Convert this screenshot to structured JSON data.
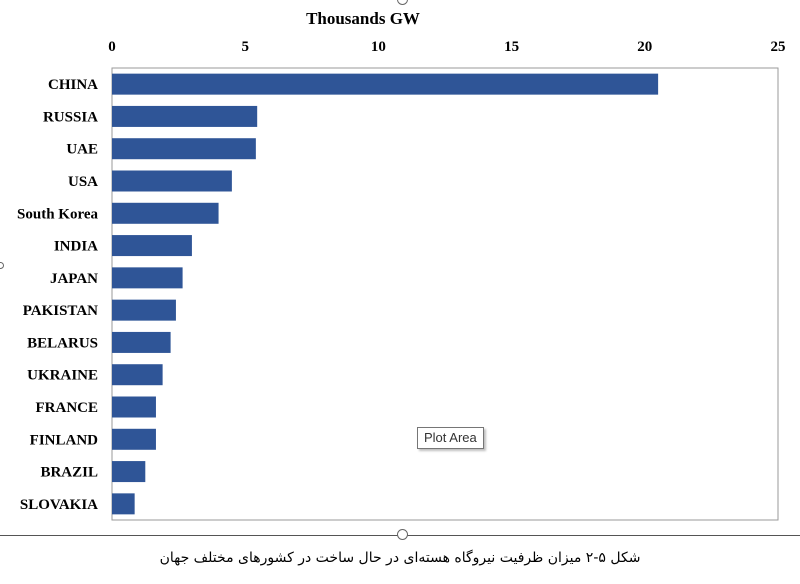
{
  "chart_data": {
    "type": "bar",
    "orientation": "horizontal",
    "title": "",
    "xlabel": "Thousands GW",
    "ylabel": "",
    "xlim": [
      0,
      25
    ],
    "xticks": [
      "0",
      "5",
      "10",
      "15",
      "20",
      "25"
    ],
    "xtick_values": [
      0,
      5,
      10,
      15,
      20,
      25
    ],
    "categories": [
      "CHINA",
      "RUSSIA",
      "UAE",
      "USA",
      "South Korea",
      "INDIA",
      "JAPAN",
      "PAKISTAN",
      "BELARUS",
      "UKRAINE",
      "FRANCE",
      "FINLAND",
      "BRAZIL",
      "SLOVAKIA"
    ],
    "values": [
      20.5,
      5.45,
      5.4,
      4.5,
      4.0,
      3.0,
      2.65,
      2.4,
      2.2,
      1.9,
      1.65,
      1.65,
      1.25,
      0.85
    ],
    "bar_color": "#2F5597",
    "grid": false,
    "legend": "none"
  },
  "tooltip": {
    "label": "Plot Area"
  },
  "caption": "شکل ۵-۲ میزان ظرفیت نیروگاه هسته‌ای در حال ساخت در کشورهای مختلف جهان"
}
